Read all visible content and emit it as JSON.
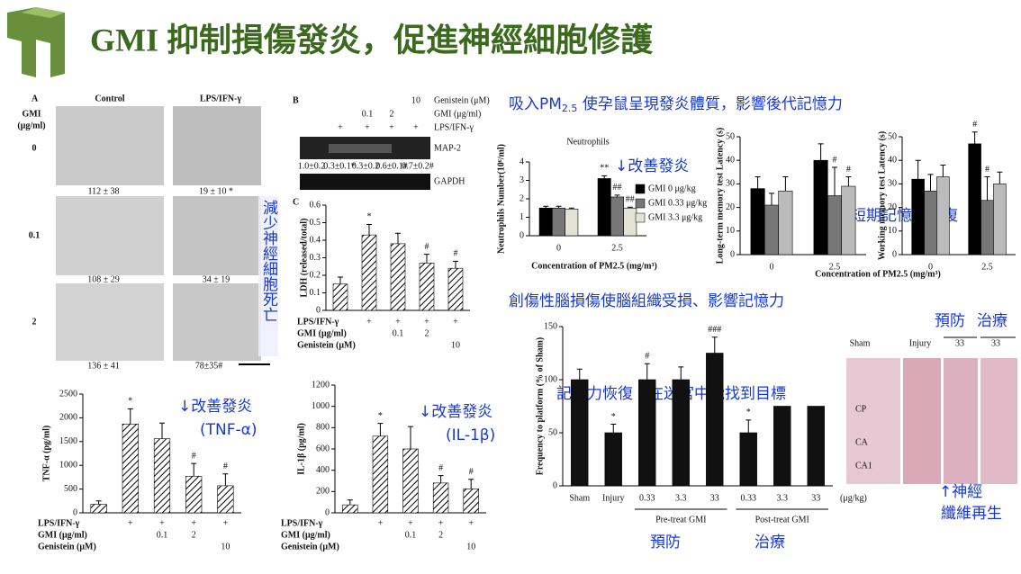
{
  "header": {
    "title": "GMI 抑制損傷發炎，促進神經細胞修護"
  },
  "section_1": {
    "text": "吸入PM",
    "sub": "2.5",
    "rest": " 使孕鼠呈現發炎體質，影響後代記憶力"
  },
  "section_2": {
    "text": "創傷性腦損傷使腦組織受損、影響記憶力"
  },
  "annotations": [
    "↓改善發炎",
    "長短期記憶力恢復",
    "減少神經細胞死亡",
    "↓改善發炎",
    "(TNF-α)",
    "↓改善發炎",
    "(IL-1β)",
    "記憶力恢復 - 在迷宮中能找到目標",
    "預防",
    "治療",
    "預防",
    "治療",
    "↑神經",
    "纖維再生"
  ],
  "figure_a": {
    "label": "A",
    "columns": [
      "Control",
      "LPS/IFN-γ"
    ],
    "row_title": [
      "GMI",
      "(μg/ml)"
    ],
    "rows": [
      "0",
      "0.1",
      "2"
    ],
    "counts": [
      "112 ± 38",
      "19 ± 10 *",
      "108 ± 29",
      "34 ± 19",
      "136 ± 41",
      "78±35#"
    ]
  },
  "figure_b": {
    "label": "B",
    "genistein": "Genistein (μM)",
    "genistein_value": "10",
    "gmi": "GMI (μg/ml)",
    "gmi_values": [
      "0.1",
      "2"
    ],
    "lps": "LPS/IFN-γ",
    "lps_marks": [
      "+",
      "+",
      "+",
      "+"
    ],
    "bands": [
      "MAP-2",
      "GAPDH"
    ],
    "ratios": [
      "1.0±0.2",
      "0.3±0.1*",
      "0.3±0.2",
      "0.6±0.1#",
      "0.7±0.2#"
    ]
  },
  "histology": {
    "columns": [
      "Sham",
      "Injury",
      "33",
      "33"
    ],
    "regions": [
      "CP",
      "CA",
      "CA1"
    ]
  },
  "chart_data": [
    {
      "type": "bar",
      "label": "C",
      "ylabel": "LDH (released/total)",
      "values": [
        0.15,
        0.43,
        0.38,
        0.27,
        0.24
      ],
      "errors": [
        0.04,
        0.06,
        0.06,
        0.05,
        0.04
      ],
      "marks": [
        null,
        "*",
        null,
        "#",
        "#"
      ],
      "color": "#111",
      "hatch": true,
      "ylim": [
        0,
        0.6
      ],
      "yticks": [
        0,
        0.1,
        0.2,
        0.3,
        0.4,
        0.5,
        0.6
      ],
      "conditions": [
        {
          "label": "LPS/IFN-γ",
          "cells": [
            null,
            "+",
            "+",
            "+",
            "+"
          ]
        },
        {
          "label": "GMI (μg/ml)",
          "cells": [
            null,
            null,
            "0.1",
            "2",
            null
          ]
        },
        {
          "label": "Genistein (μM)",
          "cells": [
            null,
            null,
            null,
            null,
            "10"
          ]
        }
      ]
    },
    {
      "type": "bar",
      "ylabel": "TNF-α (pg/ml)",
      "values": [
        180,
        1870,
        1560,
        770,
        570
      ],
      "errors": [
        70,
        320,
        330,
        270,
        250
      ],
      "marks": [
        null,
        "*",
        null,
        "#",
        "#"
      ],
      "color": "#111",
      "hatch": true,
      "ylim": [
        0,
        2500
      ],
      "yticks": [
        0,
        500,
        1000,
        1500,
        2000,
        2500
      ],
      "conditions": [
        {
          "label": "LPS/IFN-γ",
          "cells": [
            null,
            "+",
            "+",
            "+",
            "+"
          ]
        },
        {
          "label": "GMI (μg/ml)",
          "cells": [
            null,
            null,
            "0.1",
            "2",
            null
          ]
        },
        {
          "label": "Genistein (μM)",
          "cells": [
            null,
            null,
            null,
            null,
            "10"
          ]
        }
      ]
    },
    {
      "type": "bar",
      "ylabel": "IL-1β (pg/ml)",
      "values": [
        75,
        720,
        600,
        280,
        225
      ],
      "errors": [
        45,
        120,
        210,
        70,
        90
      ],
      "marks": [
        null,
        "*",
        null,
        "#",
        "#"
      ],
      "color": "#111",
      "hatch": true,
      "ylim": [
        0,
        1200
      ],
      "yticks": [
        0,
        200,
        400,
        600,
        800,
        1000,
        1200
      ],
      "conditions": [
        {
          "label": "LPS/IFN-γ",
          "cells": [
            null,
            "+",
            "+",
            "+",
            "+"
          ]
        },
        {
          "label": "GMI (μg/ml)",
          "cells": [
            null,
            null,
            "0.1",
            "2",
            null
          ]
        },
        {
          "label": "Genistein (μM)",
          "cells": [
            null,
            null,
            null,
            null,
            "10"
          ]
        }
      ]
    },
    {
      "type": "bar",
      "title": "Neutrophils",
      "ylabel": "Neutrophils Number(10⁶/ml)",
      "xlabel": "Concentration of PM2.5 (mg/m³)",
      "categories": [
        "0",
        "2.5"
      ],
      "legend": "right",
      "series": [
        {
          "name": "GMI 0 μg/kg",
          "color": "#000",
          "values": [
            1.5,
            3.1
          ],
          "errors": [
            0.1,
            0.15
          ],
          "marks": [
            null,
            "**"
          ]
        },
        {
          "name": "GMI 0.33 μg/kg",
          "color": "#777",
          "values": [
            1.5,
            2.1
          ],
          "errors": [
            0.1,
            0.1
          ],
          "marks": [
            null,
            "##"
          ]
        },
        {
          "name": "GMI 3.3 μg/kg",
          "color": "#e3e3d3",
          "values": [
            1.45,
            1.5
          ],
          "errors": [
            0.05,
            0.05
          ],
          "marks": [
            null,
            "##"
          ]
        }
      ],
      "ylim": [
        0,
        4
      ],
      "yticks": [
        0,
        1,
        2,
        3,
        4
      ]
    },
    {
      "type": "bar",
      "ylabel": "Long-term memory test Latency (s)",
      "xlabel": "Concentration of PM2.5 (mg/m³)",
      "categories": [
        "0",
        "2.5"
      ],
      "series": [
        {
          "color": "#000",
          "values": [
            28,
            40
          ],
          "errors": [
            5,
            7
          ],
          "marks": [
            null,
            null
          ]
        },
        {
          "color": "#777",
          "values": [
            21,
            25
          ],
          "errors": [
            5,
            12
          ],
          "marks": [
            null,
            "#"
          ]
        },
        {
          "color": "#bbb",
          "values": [
            27,
            29
          ],
          "errors": [
            6,
            4
          ],
          "marks": [
            null,
            "#"
          ]
        }
      ],
      "ylim": [
        0,
        50
      ],
      "yticks": [
        0,
        10,
        20,
        30,
        40,
        50
      ]
    },
    {
      "type": "bar",
      "ylabel": "Working memory test Latency (s)",
      "categories": [
        "0",
        "2.5"
      ],
      "series": [
        {
          "color": "#000",
          "values": [
            32,
            47
          ],
          "errors": [
            8,
            5
          ],
          "marks": [
            null,
            "#"
          ]
        },
        {
          "color": "#777",
          "values": [
            27,
            23
          ],
          "errors": [
            7,
            10
          ],
          "marks": [
            null,
            "#"
          ]
        },
        {
          "color": "#bbb",
          "values": [
            33,
            30
          ],
          "errors": [
            5,
            5
          ],
          "marks": [
            null,
            null
          ]
        }
      ],
      "ylim": [
        0,
        50
      ],
      "yticks": [
        0,
        10,
        20,
        30,
        40,
        50
      ]
    },
    {
      "type": "bar",
      "ylabel": "Frequency to platform (% of Sham)",
      "categories": [
        "Sham",
        "Injury",
        "0.33",
        "3.3",
        "33",
        "0.33",
        "3.3",
        "33"
      ],
      "unit": "(μg/kg)",
      "groups": [
        "Pre-treat GMI",
        "Post-treat GMI"
      ],
      "values": [
        100,
        50,
        100,
        100,
        125,
        50,
        75,
        75
      ],
      "errors": [
        10,
        8,
        15,
        12,
        15,
        12,
        null,
        null
      ],
      "marks": [
        null,
        "*",
        "#",
        null,
        "###",
        "*",
        null,
        null
      ],
      "color": "#111",
      "ylim": [
        0,
        150
      ],
      "yticks": [
        0,
        50,
        100,
        150
      ]
    }
  ]
}
